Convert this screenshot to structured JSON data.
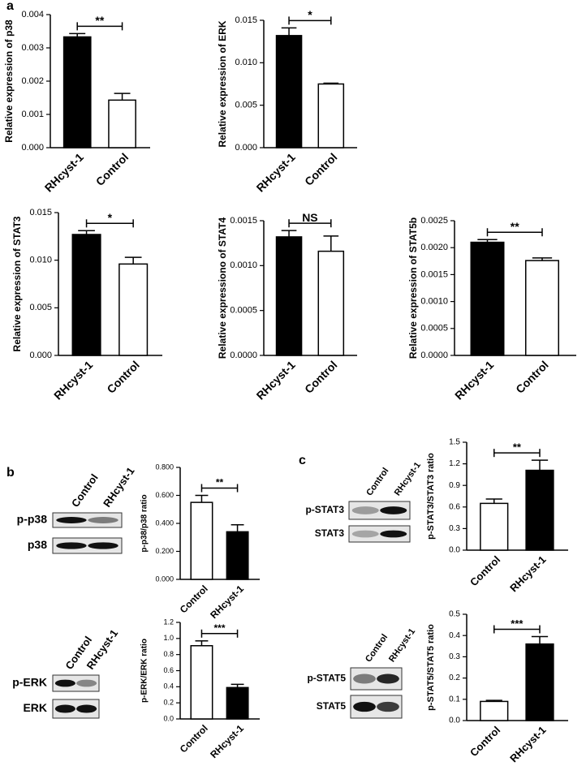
{
  "panels": [
    "a",
    "b",
    "c"
  ],
  "blots": [
    {
      "lanes": [
        "Control",
        "RHcyst-1"
      ],
      "rows": [
        "p-p38",
        "p38"
      ]
    },
    {
      "lanes": [
        "Control",
        "RHcyst-1"
      ],
      "rows": [
        "p-ERK",
        "ERK"
      ]
    },
    {
      "lanes": [
        "Control",
        "RHcyst-1"
      ],
      "rows": [
        "p-STAT3",
        "STAT3"
      ]
    },
    {
      "lanes": [
        "Control",
        "RHcyst-1"
      ],
      "rows": [
        "p-STAT5",
        "STAT5"
      ]
    }
  ],
  "chart_data": [
    {
      "type": "bar",
      "ylabel": "Relative expression of p38",
      "categories": [
        "RHcyst-1",
        "Control"
      ],
      "values": [
        0.00333,
        0.00143
      ],
      "errors": [
        0.0001,
        0.0002
      ],
      "colors": [
        "#000000",
        "#ffffff"
      ],
      "ylim": [
        0,
        0.004
      ],
      "yticks": [
        {
          "value": 0,
          "label": "0.000"
        },
        0.001,
        0.002,
        0.003,
        0.004
      ],
      "significance": "**"
    },
    {
      "type": "bar",
      "ylabel": "Relative expression of ERK",
      "categories": [
        "RHcyst-1",
        "Control"
      ],
      "values": [
        0.0132,
        0.0075
      ],
      "errors": [
        0.0009,
        0.0001
      ],
      "colors": [
        "#000000",
        "#ffffff"
      ],
      "ylim": [
        0,
        0.015
      ],
      "yticks": [
        {
          "value": 0,
          "label": "0.000"
        },
        0.005,
        {
          "value": 0.01,
          "label": "0.010"
        },
        0.015
      ],
      "significance": "*"
    },
    {
      "type": "bar",
      "ylabel": "Relative expression of STAT3",
      "categories": [
        "RHcyst-1",
        "Control"
      ],
      "values": [
        0.0127,
        0.0096
      ],
      "errors": [
        0.0004,
        0.0007
      ],
      "colors": [
        "#000000",
        "#ffffff"
      ],
      "ylim": [
        0,
        0.015
      ],
      "yticks": [
        {
          "value": 0,
          "label": "0.000"
        },
        0.005,
        {
          "value": 0.01,
          "label": "0.010"
        },
        0.015
      ],
      "significance": "*"
    },
    {
      "type": "bar",
      "ylabel": "Relative expressiono of STAT4",
      "categories": [
        "RHcyst-1",
        "Control"
      ],
      "values": [
        0.00132,
        0.00116
      ],
      "errors": [
        7e-05,
        0.00017
      ],
      "colors": [
        "#000000",
        "#ffffff"
      ],
      "ylim": [
        0,
        0.0015
      ],
      "yticks": [
        {
          "value": 0,
          "label": "0.0000"
        },
        0.0005,
        {
          "value": 0.001,
          "label": "0.0010"
        },
        0.0015
      ],
      "significance": "NS"
    },
    {
      "type": "bar",
      "ylabel": "Relative expression of STAT5b",
      "categories": [
        "RHcyst-1",
        "Control"
      ],
      "values": [
        0.0021,
        0.00176
      ],
      "errors": [
        5e-05,
        5e-05
      ],
      "colors": [
        "#000000",
        "#ffffff"
      ],
      "ylim": [
        0,
        0.0025
      ],
      "yticks": [
        {
          "value": 0,
          "label": "0.0000"
        },
        0.0005,
        {
          "value": 0.001,
          "label": "0.0010"
        },
        0.0015,
        {
          "value": 0.002,
          "label": "0.0020"
        },
        0.0025
      ],
      "significance": "**"
    },
    {
      "type": "bar",
      "ylabel": "p-p38/p38 ratio",
      "categories": [
        "Control",
        "RHcyst-1"
      ],
      "values": [
        0.55,
        0.34
      ],
      "errors": [
        0.05,
        0.05
      ],
      "colors": [
        "#ffffff",
        "#000000"
      ],
      "ylim": [
        0,
        0.8
      ],
      "yticks": [
        {
          "value": 0,
          "label": "0.000"
        },
        {
          "value": 0.2,
          "label": "0.200"
        },
        {
          "value": 0.4,
          "label": "0.400"
        },
        {
          "value": 0.6,
          "label": "0.600"
        },
        {
          "value": 0.8,
          "label": "0.800"
        }
      ],
      "significance": "**"
    },
    {
      "type": "bar",
      "ylabel": "p-ERK/ERK ratio",
      "categories": [
        "Control",
        "RHcyst-1"
      ],
      "values": [
        0.91,
        0.39
      ],
      "errors": [
        0.06,
        0.04
      ],
      "colors": [
        "#ffffff",
        "#000000"
      ],
      "ylim": [
        0,
        1.2
      ],
      "yticks": [
        {
          "value": 0,
          "label": "0.0"
        },
        0.2,
        0.4,
        0.6,
        0.8,
        {
          "value": 1,
          "label": "1.0"
        },
        1.2
      ],
      "significance": "***"
    },
    {
      "type": "bar",
      "ylabel": "p-STAT3/STAT3 ratio",
      "categories": [
        "Control",
        "RHcyst-1"
      ],
      "values": [
        0.65,
        1.11
      ],
      "errors": [
        0.06,
        0.14
      ],
      "colors": [
        "#ffffff",
        "#000000"
      ],
      "ylim": [
        0,
        1.5
      ],
      "yticks": [
        {
          "value": 0,
          "label": "0.0"
        },
        0.3,
        0.6,
        0.9,
        1.2,
        1.5
      ],
      "significance": "**"
    },
    {
      "type": "bar",
      "ylabel": "p-STAT5/STAT5 ratio",
      "categories": [
        "Control",
        "RHcyst-1"
      ],
      "values": [
        0.09,
        0.36
      ],
      "errors": [
        0.005,
        0.035
      ],
      "colors": [
        "#ffffff",
        "#000000"
      ],
      "ylim": [
        0,
        0.5
      ],
      "yticks": [
        {
          "value": 0,
          "label": "0.0"
        },
        0.1,
        0.2,
        0.3,
        0.4,
        0.5
      ],
      "significance": "***"
    }
  ]
}
